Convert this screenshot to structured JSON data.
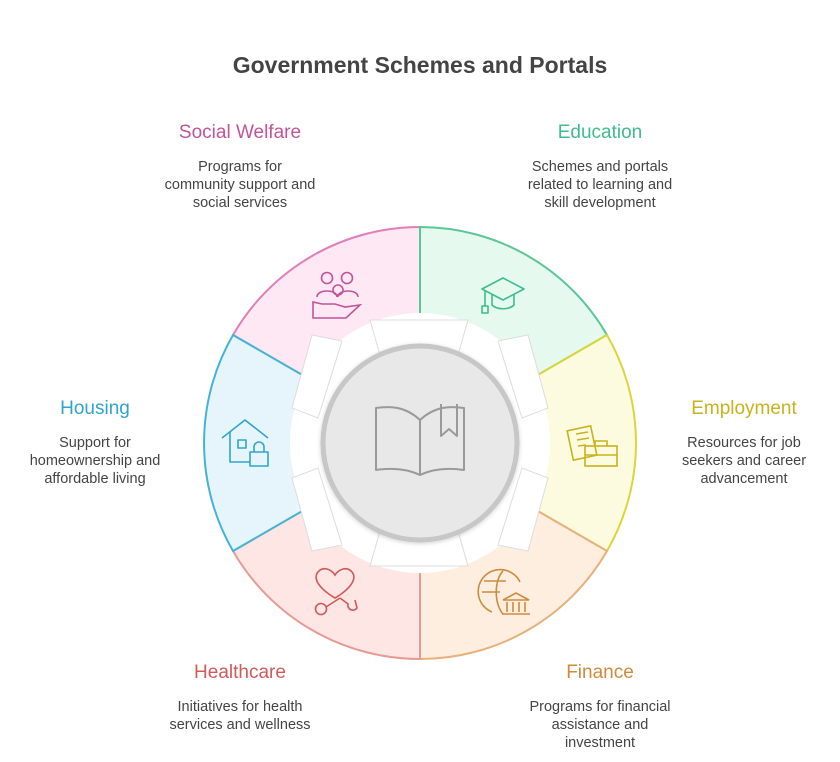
{
  "title": "Government Schemes and Portals",
  "center_icon": "open-book-icon",
  "colors": {
    "social_welfare": "#c2549a",
    "education": "#3ebd8a",
    "employment": "#d1c81f",
    "finance": "#d8964a",
    "healthcare": "#cf5a5a",
    "housing": "#2fa6c9"
  },
  "segments": [
    {
      "key": "social_welfare",
      "heading": "Social Welfare",
      "lines": [
        "Programs for",
        "community support and",
        "social services"
      ],
      "icon": "people-in-hand-icon"
    },
    {
      "key": "education",
      "heading": "Education",
      "lines": [
        "Schemes and portals",
        "related to learning and",
        "skill development"
      ],
      "icon": "graduation-cap-icon"
    },
    {
      "key": "employment",
      "heading": "Employment",
      "lines": [
        "Resources for job",
        "seekers and career",
        "advancement"
      ],
      "icon": "briefcase-documents-icon"
    },
    {
      "key": "finance",
      "heading": "Finance",
      "lines": [
        "Programs for financial",
        "assistance and",
        "investment"
      ],
      "icon": "globe-bank-icon"
    },
    {
      "key": "healthcare",
      "heading": "Healthcare",
      "lines": [
        "Initiatives for health",
        "services and wellness"
      ],
      "icon": "heart-stethoscope-icon"
    },
    {
      "key": "housing",
      "heading": "Housing",
      "lines": [
        "Support for",
        "homeownership and",
        "affordable living"
      ],
      "icon": "house-lock-icon"
    }
  ]
}
